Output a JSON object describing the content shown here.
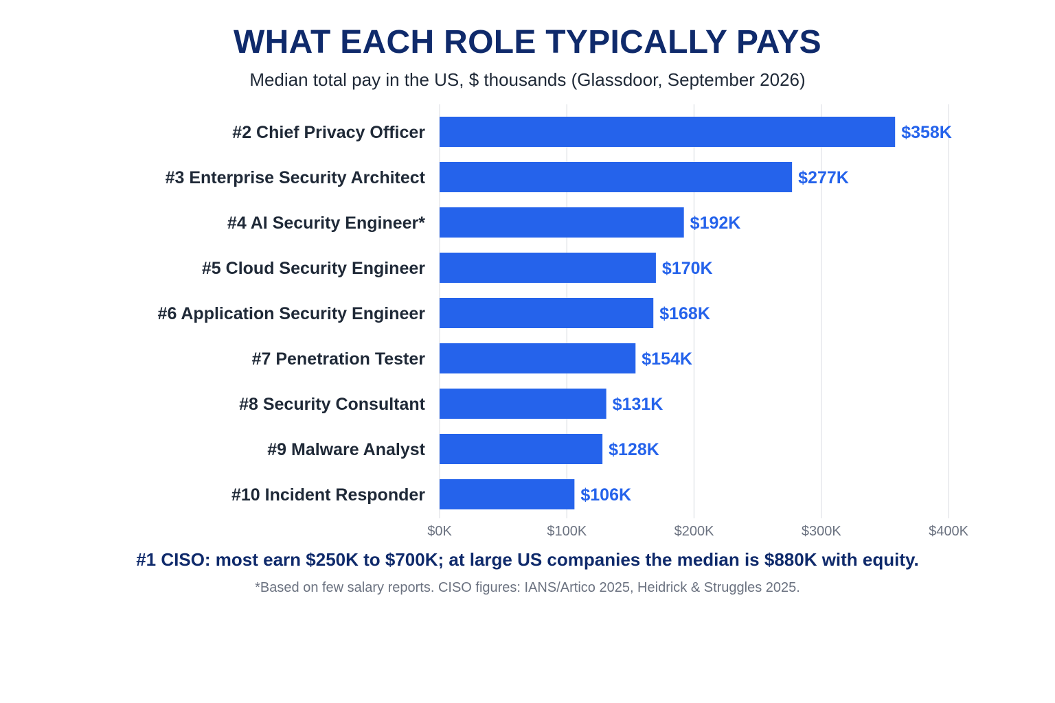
{
  "chart_data": {
    "type": "bar",
    "orientation": "horizontal",
    "title": "WHAT EACH ROLE TYPICALLY PAYS",
    "subtitle": "Median total pay in the US, $ thousands (Glassdoor, September 2026)",
    "categories": [
      "#2 Chief Privacy Officer",
      "#3 Enterprise Security Architect",
      "#4 AI Security Engineer*",
      "#5 Cloud Security Engineer",
      "#6 Application Security Engineer",
      "#7 Penetration Tester",
      "#8 Security Consultant",
      "#9 Malware Analyst",
      "#10 Incident Responder"
    ],
    "values": [
      358,
      277,
      192,
      170,
      168,
      154,
      131,
      128,
      106
    ],
    "value_labels": [
      "$358K",
      "$277K",
      "$192K",
      "$170K",
      "$168K",
      "$154K",
      "$131K",
      "$128K",
      "$106K"
    ],
    "xlim": [
      0,
      400
    ],
    "xticks": [
      0,
      100,
      200,
      300,
      400
    ],
    "xtick_labels": [
      "$0K",
      "$100K",
      "$200K",
      "$300K",
      "$400K"
    ],
    "xlabel": "",
    "ylabel": "",
    "grid": "vertical",
    "legend": "none",
    "bar_color": "#2563eb",
    "annotation": "#1 CISO: most earn $250K to $700K; at large US companies the median is $880K with equity.",
    "footnote": "*Based on few salary reports. CISO figures: IANS/Artico 2025, Heidrick & Struggles 2025."
  }
}
